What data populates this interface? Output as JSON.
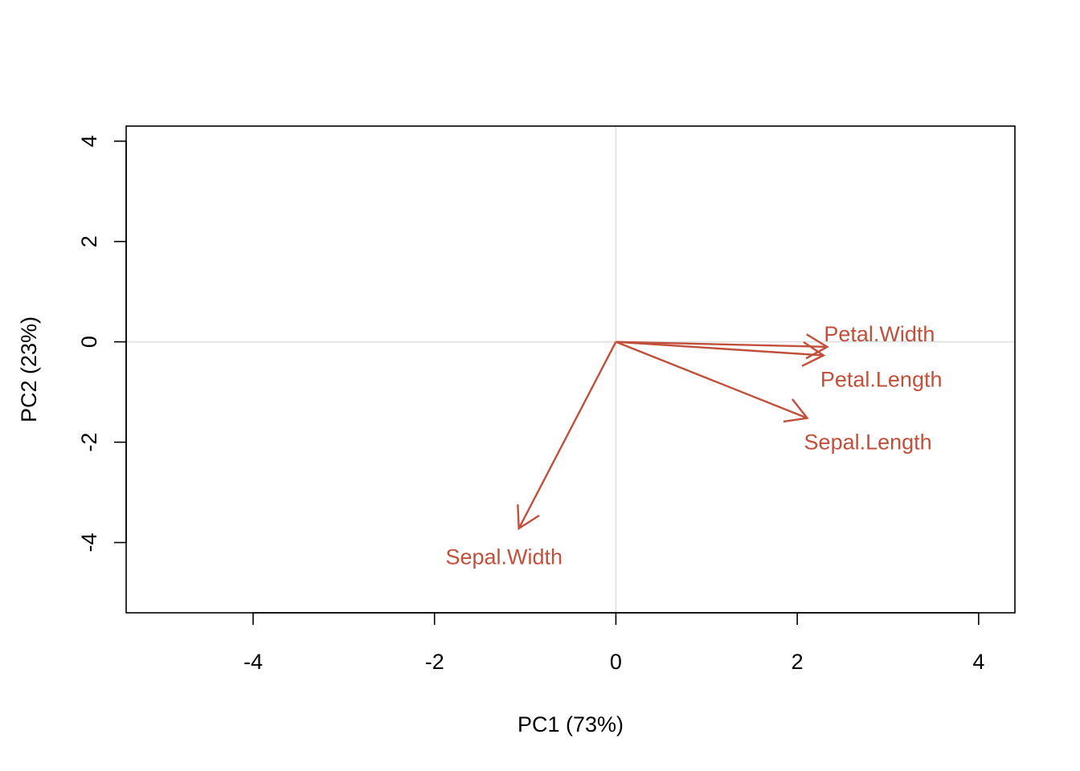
{
  "chart_data": {
    "type": "scatter",
    "subtype": "pca-loadings-biplot",
    "title": "",
    "xlabel": "PC1 (73%)",
    "ylabel": "PC2 (23%)",
    "xlim": [
      -5.4,
      4.4
    ],
    "ylim": [
      -5.4,
      4.3
    ],
    "xticks": [
      -4,
      -2,
      0,
      2,
      4
    ],
    "yticks": [
      -4,
      -2,
      0,
      2,
      4
    ],
    "grid": false,
    "reference_lines": {
      "x": 0,
      "y": 0
    },
    "arrow_color": "#C0503C",
    "reference_line_color": "#DDDDDD",
    "vectors": [
      {
        "name": "Petal.Width",
        "x": 2.33,
        "y": -0.1
      },
      {
        "name": "Petal.Length",
        "x": 2.29,
        "y": -0.27
      },
      {
        "name": "Sepal.Length",
        "x": 2.11,
        "y": -1.52
      },
      {
        "name": "Sepal.Width",
        "x": -1.07,
        "y": -3.72
      }
    ]
  }
}
